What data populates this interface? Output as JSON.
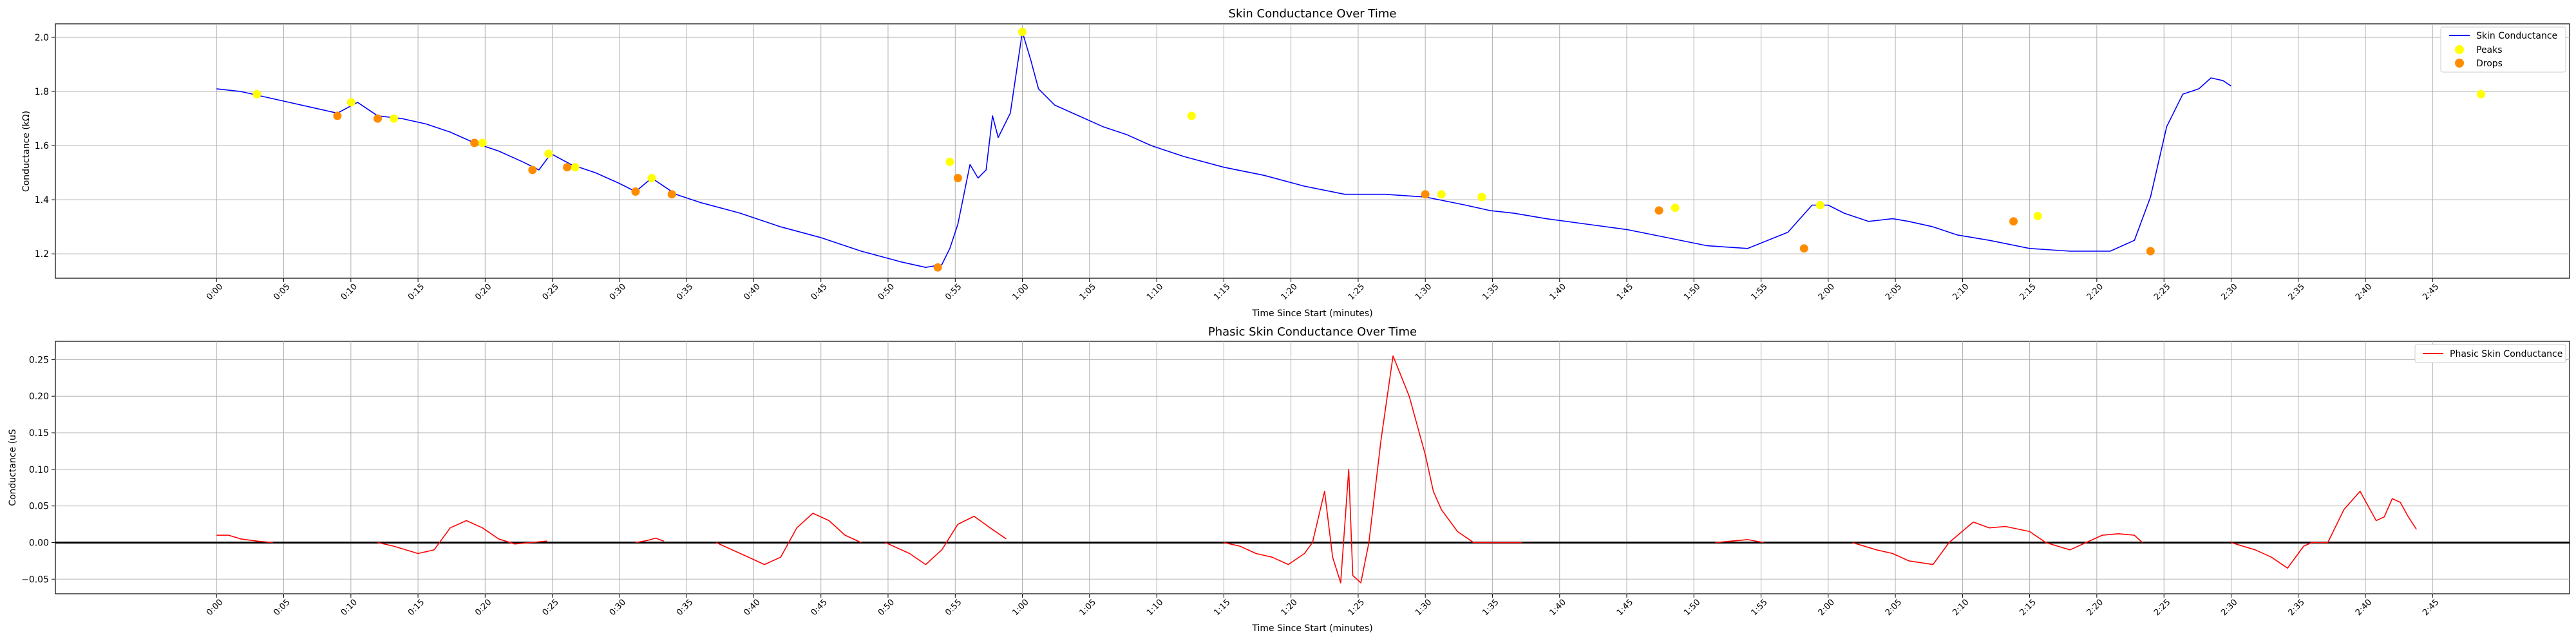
{
  "chart_data": [
    {
      "type": "line",
      "title": "Skin Conductance Over Time",
      "xlabel": "Time Since Start (minutes)",
      "ylabel": "Conductance (kΩ)",
      "xlim": [
        -0.2,
        2.92
      ],
      "ylim": [
        1.11,
        2.05
      ],
      "yticks": [
        1.2,
        1.4,
        1.6,
        1.8,
        2.0
      ],
      "ytick_labels": [
        "1.2",
        "1.4",
        "1.6",
        "1.8",
        "2.0"
      ],
      "xticks": [
        0.0,
        0.0833,
        0.1667,
        0.25,
        0.3333,
        0.4167,
        0.5,
        0.5833,
        0.6667,
        0.75,
        0.8333,
        0.9167,
        1.0,
        1.0833,
        1.1667,
        1.25,
        1.3333,
        1.4167,
        1.5,
        1.5833,
        1.6667,
        1.75,
        1.8333,
        1.9167,
        2.0,
        2.0833,
        2.1667,
        2.25,
        2.3333,
        2.4167,
        2.5,
        2.5833,
        2.6667,
        2.75
      ],
      "xtick_labels": [
        "0:00",
        "0:05",
        "0:10",
        "0:15",
        "0:20",
        "0:25",
        "0:30",
        "0:35",
        "0:40",
        "0:45",
        "0:50",
        "0:55",
        "1:00",
        "1:05",
        "1:10",
        "1:15",
        "1:20",
        "1:25",
        "1:30",
        "1:35",
        "1:40",
        "1:45",
        "1:50",
        "1:55",
        "2:00",
        "2:05",
        "2:10",
        "2:15",
        "2:20",
        "2:25",
        "2:30",
        "2:35",
        "2:40",
        "2:45"
      ],
      "grid": true,
      "legend_position": "top-right",
      "series": [
        {
          "name": "Skin Conductance",
          "kind": "line",
          "color": "#0000ff",
          "x": [
            0.0,
            0.03,
            0.06,
            0.09,
            0.12,
            0.15,
            0.175,
            0.2,
            0.23,
            0.26,
            0.29,
            0.32,
            0.35,
            0.38,
            0.4,
            0.415,
            0.44,
            0.47,
            0.5,
            0.52,
            0.54,
            0.57,
            0.6,
            0.65,
            0.7,
            0.75,
            0.8,
            0.85,
            0.88,
            0.9,
            0.91,
            0.92,
            0.935,
            0.945,
            0.955,
            0.963,
            0.97,
            0.985,
            1.0,
            1.01,
            1.02,
            1.04,
            1.07,
            1.1,
            1.13,
            1.16,
            1.2,
            1.25,
            1.3,
            1.35,
            1.4,
            1.45,
            1.5,
            1.55,
            1.58,
            1.61,
            1.65,
            1.7,
            1.75,
            1.8,
            1.85,
            1.9,
            1.95,
            1.98,
            2.0,
            2.02,
            2.05,
            2.08,
            2.1,
            2.13,
            2.16,
            2.2,
            2.25,
            2.3,
            2.35,
            2.38,
            2.4,
            2.42,
            2.44,
            2.46,
            2.475,
            2.49,
            2.5
          ],
          "y": [
            1.81,
            1.8,
            1.78,
            1.76,
            1.74,
            1.72,
            1.76,
            1.71,
            1.7,
            1.68,
            1.65,
            1.61,
            1.58,
            1.54,
            1.51,
            1.57,
            1.53,
            1.5,
            1.46,
            1.43,
            1.48,
            1.42,
            1.39,
            1.35,
            1.3,
            1.26,
            1.21,
            1.17,
            1.15,
            1.16,
            1.22,
            1.31,
            1.53,
            1.48,
            1.51,
            1.71,
            1.63,
            1.72,
            2.02,
            1.92,
            1.81,
            1.75,
            1.71,
            1.67,
            1.64,
            1.6,
            1.56,
            1.52,
            1.49,
            1.45,
            1.42,
            1.42,
            1.41,
            1.38,
            1.36,
            1.35,
            1.33,
            1.31,
            1.29,
            1.26,
            1.23,
            1.22,
            1.28,
            1.38,
            1.38,
            1.35,
            1.32,
            1.33,
            1.32,
            1.3,
            1.27,
            1.25,
            1.22,
            1.21,
            1.21,
            1.25,
            1.41,
            1.67,
            1.79,
            1.81,
            1.85,
            1.84,
            1.82
          ]
        },
        {
          "name": "Peaks",
          "kind": "scatter",
          "color": "#ffff00",
          "x": [
            0.05,
            0.167,
            0.22,
            0.33,
            0.412,
            0.445,
            0.54,
            0.91,
            1.0,
            1.21,
            1.52,
            1.57,
            1.81,
            1.99,
            2.26,
            2.81
          ],
          "y": [
            1.79,
            1.76,
            1.7,
            1.61,
            1.57,
            1.52,
            1.48,
            1.54,
            2.02,
            1.71,
            1.42,
            1.41,
            1.37,
            1.38,
            1.34,
            1.79
          ]
        },
        {
          "name": "Drops",
          "kind": "scatter",
          "color": "#ff8c00",
          "x": [
            0.15,
            0.2,
            0.32,
            0.392,
            0.435,
            0.52,
            0.565,
            0.895,
            0.92,
            1.5,
            1.79,
            1.97,
            2.23,
            2.4
          ],
          "y": [
            1.71,
            1.7,
            1.61,
            1.51,
            1.52,
            1.43,
            1.42,
            1.15,
            1.48,
            1.42,
            1.36,
            1.22,
            1.32,
            1.21
          ]
        }
      ]
    },
    {
      "type": "line",
      "title": "Phasic Skin Conductance Over Time",
      "xlabel": "Time Since Start (minutes)",
      "ylabel": "Conductance (uS",
      "xlim": [
        -0.2,
        2.92
      ],
      "ylim": [
        -0.07,
        0.275
      ],
      "yticks": [
        -0.05,
        0.0,
        0.05,
        0.1,
        0.15,
        0.2,
        0.25
      ],
      "ytick_labels": [
        "−0.05",
        "0.00",
        "0.05",
        "0.10",
        "0.15",
        "0.20",
        "0.25"
      ],
      "xticks": [
        0.0,
        0.0833,
        0.1667,
        0.25,
        0.3333,
        0.4167,
        0.5,
        0.5833,
        0.6667,
        0.75,
        0.8333,
        0.9167,
        1.0,
        1.0833,
        1.1667,
        1.25,
        1.3333,
        1.4167,
        1.5,
        1.5833,
        1.6667,
        1.75,
        1.8333,
        1.9167,
        2.0,
        2.0833,
        2.1667,
        2.25,
        2.3333,
        2.4167,
        2.5,
        2.5833,
        2.6667,
        2.75
      ],
      "xtick_labels": [
        "0:00",
        "0:05",
        "0:10",
        "0:15",
        "0:20",
        "0:25",
        "0:30",
        "0:35",
        "0:40",
        "0:45",
        "0:50",
        "0:55",
        "1:00",
        "1:05",
        "1:10",
        "1:15",
        "1:20",
        "1:25",
        "1:30",
        "1:35",
        "1:40",
        "1:45",
        "1:50",
        "1:55",
        "2:00",
        "2:05",
        "2:10",
        "2:15",
        "2:20",
        "2:25",
        "2:30",
        "2:35",
        "2:40",
        "2:45"
      ],
      "grid": true,
      "legend_position": "top-right",
      "zero_line": true,
      "series": [
        {
          "name": "Phasic Skin Conductance",
          "color": "#ff0000",
          "segments": [
            {
              "x": [
                0.0,
                0.015,
                0.03,
                0.05,
                0.07
              ],
              "y": [
                0.01,
                0.01,
                0.005,
                0.002,
                0.0
              ]
            },
            {
              "x": [
                0.2,
                0.22,
                0.25,
                0.27,
                0.29,
                0.31,
                0.33,
                0.35,
                0.37,
                0.39,
                0.41
              ],
              "y": [
                0.0,
                -0.005,
                -0.015,
                -0.01,
                0.02,
                0.03,
                0.02,
                0.005,
                -0.002,
                0.0,
                0.002
              ]
            },
            {
              "x": [
                0.52,
                0.535,
                0.545,
                0.555
              ],
              "y": [
                0.0,
                0.003,
                0.006,
                0.002
              ]
            },
            {
              "x": [
                0.62,
                0.65,
                0.68,
                0.7,
                0.72,
                0.74,
                0.76,
                0.78,
                0.8
              ],
              "y": [
                0.0,
                -0.015,
                -0.03,
                -0.02,
                0.02,
                0.04,
                0.03,
                0.01,
                0.0
              ]
            },
            {
              "x": [
                0.83,
                0.86,
                0.88,
                0.9,
                0.92,
                0.94,
                0.96,
                0.98
              ],
              "y": [
                0.0,
                -0.015,
                -0.03,
                -0.01,
                0.025,
                0.036,
                0.02,
                0.005
              ]
            },
            {
              "x": [
                1.25,
                1.27,
                1.29,
                1.31,
                1.33,
                1.35,
                1.36,
                1.375,
                1.385,
                1.395,
                1.405,
                1.41,
                1.42,
                1.43,
                1.445,
                1.46,
                1.48,
                1.5,
                1.51,
                1.52,
                1.54,
                1.56,
                1.58,
                1.6,
                1.62
              ],
              "y": [
                0.0,
                -0.005,
                -0.015,
                -0.02,
                -0.03,
                -0.015,
                0.0,
                0.07,
                -0.02,
                -0.055,
                0.1,
                -0.045,
                -0.055,
                0.0,
                0.14,
                0.255,
                0.2,
                0.12,
                0.07,
                0.045,
                0.015,
                0.0,
                0.0,
                0.0,
                0.0
              ]
            },
            {
              "x": [
                1.86,
                1.88,
                1.9,
                1.92
              ],
              "y": [
                0.0,
                0.002,
                0.004,
                0.0
              ]
            },
            {
              "x": [
                2.03,
                2.06,
                2.08,
                2.1,
                2.13,
                2.15,
                2.18,
                2.2,
                2.22,
                2.25,
                2.27,
                2.3,
                2.32,
                2.34,
                2.36,
                2.38,
                2.39
              ],
              "y": [
                0.0,
                -0.01,
                -0.015,
                -0.025,
                -0.03,
                0.0,
                0.028,
                0.02,
                0.022,
                0.015,
                0.0,
                -0.01,
                0.0,
                0.01,
                0.012,
                0.01,
                0.0
              ]
            },
            {
              "x": [
                2.5,
                2.53,
                2.55,
                2.57,
                2.59,
                2.6,
                2.62,
                2.64,
                2.66,
                2.67,
                2.68,
                2.69,
                2.7,
                2.71,
                2.72,
                2.73
              ],
              "y": [
                0.0,
                -0.01,
                -0.02,
                -0.035,
                -0.005,
                0.0,
                0.0,
                0.045,
                0.07,
                0.05,
                0.03,
                0.035,
                0.06,
                0.055,
                0.035,
                0.018
              ]
            }
          ]
        }
      ]
    }
  ]
}
